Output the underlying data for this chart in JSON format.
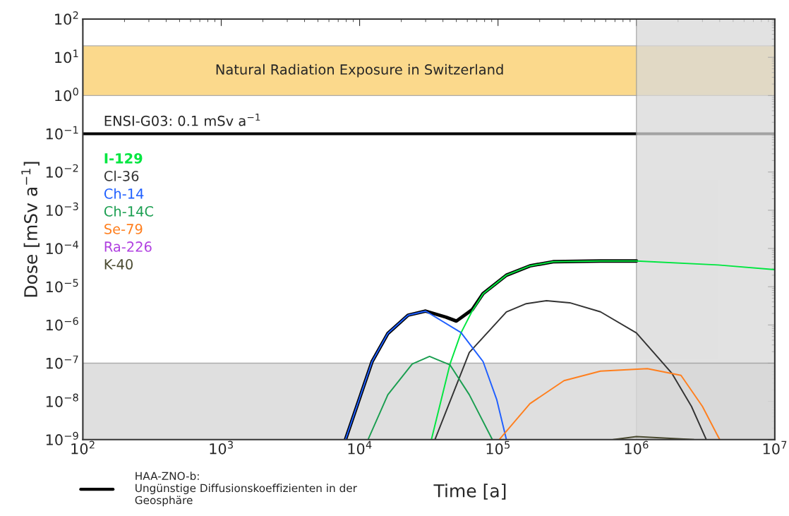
{
  "chart_data": {
    "type": "line",
    "xlabel": "Time [a]",
    "ylabel": "Dose [mSv a$^{−1}$]",
    "log": "xy",
    "grid": false,
    "legend": "bottom left",
    "xlim": [
      100,
      10000000
    ],
    "ylim": [
      1e-09,
      100
    ],
    "xticks": [
      {
        "value": 100,
        "label": "10$^{2}$"
      },
      {
        "value": 1000,
        "label": "10$^{3}$"
      },
      {
        "value": 10000,
        "label": "10$^{4}$"
      },
      {
        "value": 100000,
        "label": "10$^{5}$"
      },
      {
        "value": 1000000,
        "label": "10$^{6}$"
      },
      {
        "value": 10000000,
        "label": "10$^{7}$"
      }
    ],
    "yticks": [
      {
        "value": 1e-09,
        "label": "10$^{−9}$"
      },
      {
        "value": 1e-08,
        "label": "10$^{−8}$"
      },
      {
        "value": 1e-07,
        "label": "10$^{−7}$"
      },
      {
        "value": 1e-06,
        "label": "10$^{−6}$"
      },
      {
        "value": 1e-05,
        "label": "10$^{−5}$"
      },
      {
        "value": 0.0001,
        "label": "10$^{−4}$"
      },
      {
        "value": 0.001,
        "label": "10$^{−3}$"
      },
      {
        "value": 0.01,
        "label": "10$^{−2}$"
      },
      {
        "value": 0.1,
        "label": "10$^{−1}$"
      },
      {
        "value": 1,
        "label": "10$^{0}$"
      },
      {
        "value": 10,
        "label": "10$^{1}$"
      },
      {
        "value": 100,
        "label": "10$^{2}$"
      }
    ],
    "bands": [
      {
        "axis": "y",
        "from": 1,
        "to": 20,
        "label": "Natural Radiation Exposure in Switzerland",
        "color": "#fbd070"
      },
      {
        "axis": "x",
        "from": 1000000,
        "to": 10000000,
        "color": "#d8d8d8"
      },
      {
        "axis": "y",
        "from": 1e-09,
        "to": 1e-07,
        "color": "#d8d8d8"
      }
    ],
    "ref_lines": [
      {
        "axis": "y",
        "value": 0.1,
        "label": "ENSI-G03: 0.1 mSv a$^{−1}$",
        "color": "#000000"
      }
    ],
    "series": [
      {
        "name": "HAA-ZNO-b:\nUngünstige Diffusionskoeffizienten in der\nGeosphäre",
        "color": "#000000",
        "x": [
          7900,
          12300,
          16000,
          22400,
          30000,
          42000,
          50000,
          65000,
          78000,
          115000,
          170000,
          250000,
          550000,
          1000000
        ],
        "values": [
          1e-09,
          1.1e-07,
          6e-07,
          1.8e-06,
          2.3e-06,
          1.6e-06,
          1.26e-06,
          2.5e-06,
          6.6e-06,
          2e-05,
          3.5e-05,
          4.5e-05,
          4.7e-05,
          4.7e-05
        ]
      },
      {
        "name": "I-129",
        "color": "#00e640",
        "x": [
          33000,
          45000,
          54000,
          65000,
          78000,
          115000,
          170000,
          250000,
          550000,
          1000000,
          3900000,
          10000000
        ],
        "values": [
          1e-09,
          9.5e-08,
          6.2e-07,
          2.3e-06,
          6.5e-06,
          2e-05,
          3.5e-05,
          4.5e-05,
          4.7e-05,
          4.7e-05,
          3.7e-05,
          2.8e-05
        ]
      },
      {
        "name": "Cl-36",
        "color": "#333333",
        "x": [
          35000,
          62000,
          115000,
          160000,
          224000,
          330000,
          550000,
          1000000,
          1800000,
          2500000,
          3200000
        ],
        "values": [
          1e-09,
          1.9e-07,
          2.2e-06,
          3.6e-06,
          4.3e-06,
          3.8e-06,
          2.2e-06,
          6.2e-07,
          5.5e-08,
          7.4e-09,
          1e-09
        ]
      },
      {
        "name": "Ch-14",
        "color": "#1f5fff",
        "x": [
          7900,
          12300,
          16000,
          22400,
          30000,
          54000,
          78000,
          98000,
          115000
        ],
        "values": [
          1e-09,
          1.1e-07,
          6e-07,
          1.8e-06,
          2.3e-06,
          6.3e-07,
          1.1e-07,
          1.1e-08,
          1e-09
        ]
      },
      {
        "name": "Ch-14C",
        "color": "#1a9e50",
        "x": [
          11500,
          16000,
          24000,
          32000,
          45000,
          62000,
          91000
        ],
        "values": [
          1e-09,
          1.5e-08,
          9.5e-08,
          1.5e-07,
          9e-08,
          1.5e-08,
          1e-09
        ]
      },
      {
        "name": "Se-79",
        "color": "#ff7f1e",
        "x": [
          102000,
          170000,
          300000,
          550000,
          1200000,
          2100000,
          3000000,
          4000000
        ],
        "values": [
          1e-09,
          8.7e-09,
          3.5e-08,
          6.2e-08,
          7.2e-08,
          4.8e-08,
          7.4e-09,
          1e-09
        ]
      },
      {
        "name": "Ra-226",
        "color": "#b040e0"
      },
      {
        "name": "K-40",
        "color": "#4a4a30",
        "x": [
          680000,
          1000000,
          2600000
        ],
        "values": [
          1e-09,
          1.2e-09,
          1e-09
        ]
      }
    ]
  }
}
